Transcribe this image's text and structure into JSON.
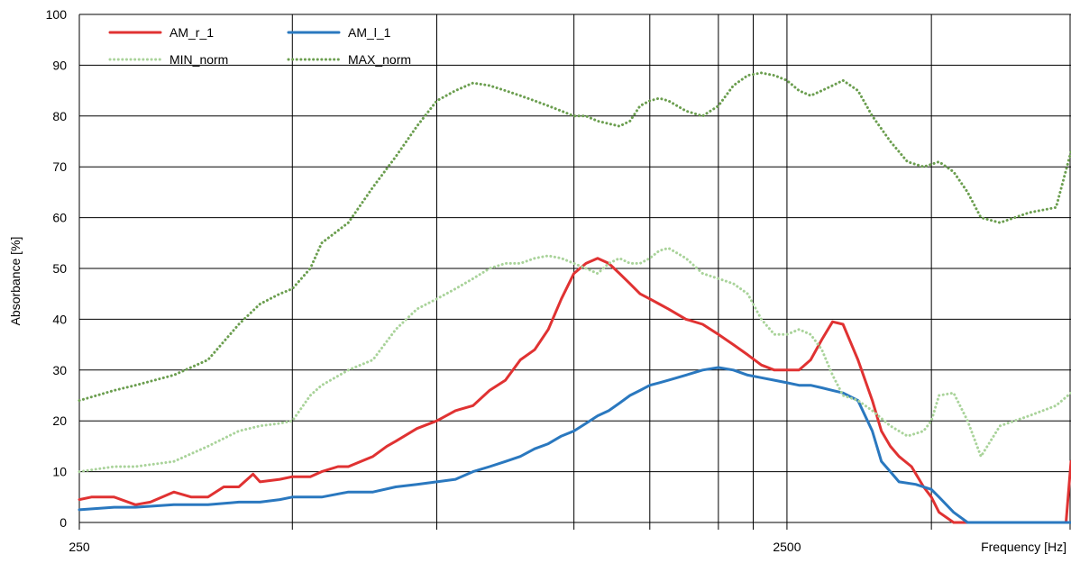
{
  "chart_data": {
    "type": "line",
    "title": "",
    "xlabel": "Frequency [Hz]",
    "ylabel": "Absorbance [%]",
    "x_scale": "log",
    "xlim": [
      250,
      6300
    ],
    "ylim": [
      0,
      100
    ],
    "y_ticks": [
      "0",
      "10",
      "20",
      "30",
      "40",
      "50",
      "60",
      "70",
      "80",
      "90",
      "100"
    ],
    "x_tick_labels": [
      {
        "value": 250,
        "label": "250"
      },
      {
        "value": 2500,
        "label": "2500"
      }
    ],
    "x_gridlines": [
      250,
      500,
      800,
      1250,
      1600,
      2000,
      2240,
      2500,
      4000,
      6300
    ],
    "grid": true,
    "legend_placement": "top-left",
    "series": [
      {
        "name": "AM_r_1",
        "color": "#e03232",
        "style": "solid",
        "x": [
          250,
          260,
          280,
          300,
          315,
          340,
          360,
          380,
          400,
          420,
          440,
          450,
          480,
          500,
          530,
          550,
          580,
          600,
          650,
          680,
          700,
          750,
          800,
          850,
          900,
          950,
          1000,
          1050,
          1100,
          1150,
          1200,
          1250,
          1300,
          1350,
          1400,
          1450,
          1500,
          1550,
          1600,
          1650,
          1700,
          1800,
          1900,
          2000,
          2100,
          2200,
          2300,
          2400,
          2500,
          2600,
          2700,
          2800,
          2900,
          3000,
          3150,
          3300,
          3400,
          3500,
          3600,
          3750,
          3900,
          4000,
          4100,
          4300,
          4500,
          4700,
          5000,
          5500,
          6000,
          6200,
          6300
        ],
        "values": [
          4.5,
          5,
          5,
          3.5,
          4,
          6,
          5,
          5,
          7,
          7,
          9.5,
          8,
          8.5,
          9,
          9,
          10,
          11,
          11,
          13,
          15,
          16,
          18.5,
          20,
          22,
          23,
          26,
          28,
          32,
          34,
          38,
          44,
          49,
          51,
          52,
          51,
          49,
          47,
          45,
          44,
          43,
          42,
          40,
          39,
          37,
          35,
          33,
          31,
          30,
          30,
          30,
          32,
          36,
          39.5,
          39,
          32,
          24,
          18,
          15,
          13,
          11,
          7,
          5,
          2,
          0,
          0,
          0,
          0,
          0,
          0,
          0,
          12
        ]
      },
      {
        "name": "AM_l_1",
        "color": "#2a78bf",
        "style": "solid",
        "x": [
          250,
          280,
          300,
          340,
          380,
          420,
          450,
          480,
          500,
          530,
          550,
          600,
          650,
          700,
          750,
          800,
          850,
          900,
          950,
          1000,
          1050,
          1100,
          1150,
          1200,
          1250,
          1300,
          1350,
          1400,
          1450,
          1500,
          1550,
          1600,
          1650,
          1700,
          1800,
          1900,
          2000,
          2100,
          2200,
          2300,
          2400,
          2500,
          2600,
          2700,
          2800,
          2900,
          3000,
          3150,
          3300,
          3400,
          3500,
          3600,
          3800,
          4000,
          4100,
          4300,
          4500,
          5000,
          5500,
          6000,
          6200,
          6300
        ],
        "values": [
          2.5,
          3,
          3,
          3.5,
          3.5,
          4,
          4,
          4.5,
          5,
          5,
          5,
          6,
          6,
          7,
          7.5,
          8,
          8.5,
          10,
          11,
          12,
          13,
          14.5,
          15.5,
          17,
          18,
          19.5,
          21,
          22,
          23.5,
          25,
          26,
          27,
          27.5,
          28,
          29,
          30,
          30.5,
          30,
          29,
          28.5,
          28,
          27.5,
          27,
          27,
          26.5,
          26,
          25.5,
          24,
          18,
          12,
          10,
          8,
          7.5,
          6.5,
          5,
          2,
          0,
          0,
          0,
          0,
          0,
          0
        ]
      },
      {
        "name": "MIN_norm",
        "color": "#a9d39a",
        "style": "dotted",
        "x": [
          250,
          280,
          300,
          340,
          380,
          420,
          450,
          480,
          500,
          530,
          550,
          600,
          650,
          700,
          750,
          800,
          850,
          900,
          950,
          1000,
          1050,
          1100,
          1150,
          1200,
          1250,
          1300,
          1350,
          1400,
          1450,
          1500,
          1550,
          1600,
          1650,
          1700,
          1800,
          1900,
          2000,
          2100,
          2200,
          2300,
          2400,
          2500,
          2600,
          2700,
          2800,
          2900,
          3000,
          3150,
          3300,
          3500,
          3700,
          3900,
          4000,
          4100,
          4300,
          4500,
          4700,
          5000,
          5500,
          6000,
          6300
        ],
        "values": [
          10,
          11,
          11,
          12,
          15,
          18,
          19,
          19.5,
          20,
          25,
          27,
          30,
          32,
          38,
          42,
          44,
          46,
          48,
          50,
          51,
          51,
          52,
          52.5,
          52,
          51,
          50,
          49,
          51,
          52,
          51,
          51,
          52,
          53.5,
          54,
          52,
          49,
          48,
          47,
          45,
          40,
          37,
          37,
          38,
          37,
          34,
          29,
          25,
          24,
          22,
          19,
          17,
          18,
          20,
          25,
          25.5,
          20,
          13,
          19,
          21,
          23,
          25.5
        ]
      },
      {
        "name": "MAX_norm",
        "color": "#6b9e4f",
        "style": "dotted",
        "x": [
          250,
          280,
          300,
          340,
          380,
          420,
          450,
          480,
          500,
          530,
          550,
          600,
          650,
          700,
          750,
          800,
          850,
          900,
          950,
          1000,
          1050,
          1100,
          1150,
          1200,
          1250,
          1300,
          1350,
          1400,
          1450,
          1500,
          1550,
          1600,
          1650,
          1700,
          1800,
          1900,
          2000,
          2100,
          2200,
          2300,
          2400,
          2500,
          2600,
          2700,
          2800,
          2900,
          3000,
          3150,
          3300,
          3500,
          3700,
          3900,
          4000,
          4100,
          4300,
          4500,
          4700,
          5000,
          5500,
          6000,
          6300
        ],
        "values": [
          24,
          26,
          27,
          29,
          32,
          39,
          43,
          45,
          46,
          50,
          55,
          59,
          66,
          72,
          78,
          83,
          85,
          86.5,
          86,
          85,
          84,
          83,
          82,
          81,
          80,
          80,
          79,
          78.5,
          78,
          79,
          82,
          83,
          83.5,
          83,
          81,
          80,
          82,
          86,
          88,
          88.5,
          88,
          87,
          85,
          84,
          85,
          86,
          87,
          85,
          80,
          75,
          71,
          70,
          70.5,
          71,
          69,
          65,
          60,
          59,
          61,
          62,
          73
        ]
      }
    ]
  }
}
